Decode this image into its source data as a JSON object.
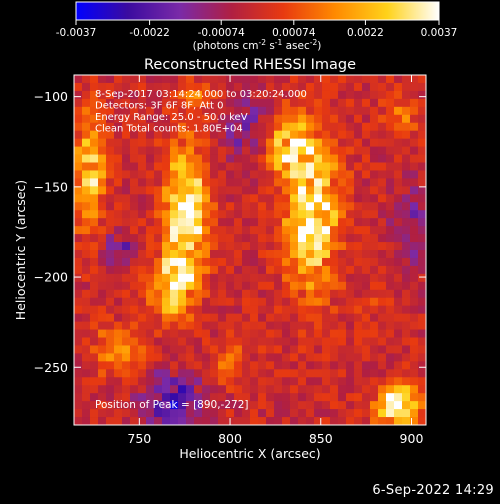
{
  "chart_data": {
    "type": "heatmap",
    "title": "Reconstructed RHESSI Image",
    "xlabel": "Heliocentric X (arcsec)",
    "ylabel": "Heliocentric Y (arcsec)",
    "xlim": [
      714,
      908
    ],
    "ylim": [
      -282,
      -88
    ],
    "xticks": [
      750,
      800,
      850,
      900
    ],
    "yticks": [
      -100,
      -150,
      -200,
      -250
    ],
    "colorbar": {
      "ticks": [
        "-0.0037",
        "-0.0022",
        "-0.00074",
        "0.00074",
        "0.0022",
        "0.0037"
      ],
      "range": [
        -0.0037,
        0.0037
      ],
      "label_main": "(photons cm",
      "label_exp1": "-2",
      "label_mid1": " s",
      "label_exp2": "-1",
      "label_mid2": " asec",
      "label_exp3": "-2",
      "label_end": ")"
    },
    "annotations": [
      "8-Sep-2017 03:14:24.000 to 03:20:24.000",
      "Detectors: 3F 6F 8F, Att 0",
      "Energy Range: 25.0 - 50.0 keV",
      "Clean     Total counts: 1.80E+04"
    ],
    "peak_label": "Position of Peak = [890,-272]",
    "sources": [
      {
        "x": 775,
        "y": -165,
        "sx": 8,
        "sy": 24,
        "amp": 0.0037
      },
      {
        "x": 768,
        "y": -205,
        "sx": 8,
        "sy": 12,
        "amp": 0.003
      },
      {
        "x": 845,
        "y": -165,
        "sx": 10,
        "sy": 30,
        "amp": 0.0034
      },
      {
        "x": 832,
        "y": -128,
        "sx": 9,
        "sy": 10,
        "amp": 0.0026
      },
      {
        "x": 722,
        "y": -140,
        "sx": 6,
        "sy": 22,
        "amp": 0.0026
      },
      {
        "x": 893,
        "y": -272,
        "sx": 9,
        "sy": 8,
        "amp": 0.0037
      },
      {
        "x": 738,
        "y": -240,
        "sx": 9,
        "sy": 9,
        "amp": 0.0016
      },
      {
        "x": 800,
        "y": -248,
        "sx": 8,
        "sy": 8,
        "amp": 0.001
      },
      {
        "x": 878,
        "y": -215,
        "sx": 6,
        "sy": 6,
        "amp": 0.0008
      },
      {
        "x": 895,
        "y": -110,
        "sx": 7,
        "sy": 8,
        "amp": 0.001
      },
      {
        "x": 780,
        "y": -100,
        "sx": 8,
        "sy": 6,
        "amp": 0.0012
      },
      {
        "x": 810,
        "y": -120,
        "sx": 8,
        "sy": 14,
        "amp": -0.0014
      },
      {
        "x": 768,
        "y": -268,
        "sx": 12,
        "sy": 10,
        "amp": -0.0022
      },
      {
        "x": 738,
        "y": -185,
        "sx": 6,
        "sy": 6,
        "amp": -0.0018
      },
      {
        "x": 900,
        "y": -170,
        "sx": 8,
        "sy": 18,
        "amp": -0.0012
      }
    ]
  },
  "timestamp": "6-Sep-2022 14:29",
  "colors": {
    "background": "#000000",
    "colormap": [
      "#0000ff",
      "#3b0ba0",
      "#7a2aa8",
      "#b01f42",
      "#e83a10",
      "#ff8a00",
      "#ffd21a",
      "#ffffff"
    ]
  }
}
